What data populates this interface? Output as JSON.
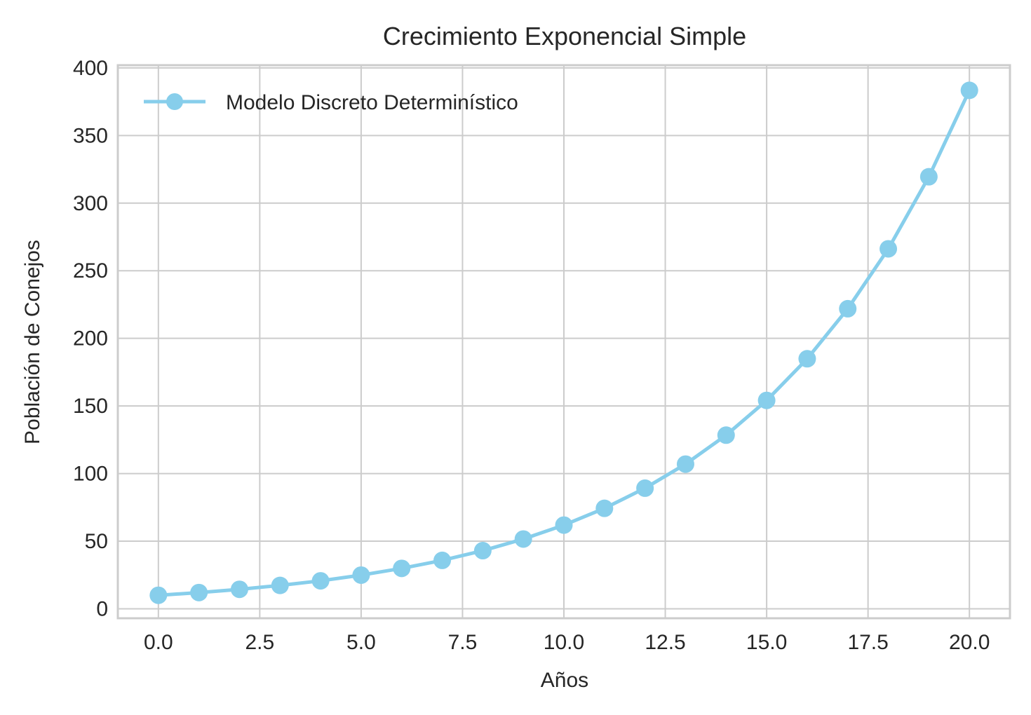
{
  "chart_data": {
    "type": "line",
    "title": "Crecimiento Exponencial Simple",
    "xlabel": "Años",
    "ylabel": "Población de Conejos",
    "xlim": [
      -1,
      21
    ],
    "ylim": [
      -7,
      402
    ],
    "xticks": [
      0.0,
      2.5,
      5.0,
      7.5,
      10.0,
      12.5,
      15.0,
      17.5,
      20.0
    ],
    "xtick_labels": [
      "0.0",
      "2.5",
      "5.0",
      "7.5",
      "10.0",
      "12.5",
      "15.0",
      "17.5",
      "20.0"
    ],
    "yticks": [
      0,
      50,
      100,
      150,
      200,
      250,
      300,
      350,
      400
    ],
    "ytick_labels": [
      "0",
      "50",
      "100",
      "150",
      "200",
      "250",
      "300",
      "350",
      "400"
    ],
    "grid": true,
    "legend_position": "top-left",
    "series": [
      {
        "name": "Modelo Discreto Determinístico",
        "color": "#87ceeb",
        "marker": "circle",
        "x": [
          0,
          1,
          2,
          3,
          4,
          5,
          6,
          7,
          8,
          9,
          10,
          11,
          12,
          13,
          14,
          15,
          16,
          17,
          18,
          19,
          20
        ],
        "y": [
          10,
          12,
          14.4,
          17.3,
          20.7,
          24.9,
          29.9,
          35.8,
          43,
          51.6,
          61.9,
          74.3,
          89.2,
          107,
          128.4,
          154.1,
          184.9,
          221.9,
          266.2,
          319.5,
          383.4
        ]
      }
    ]
  }
}
